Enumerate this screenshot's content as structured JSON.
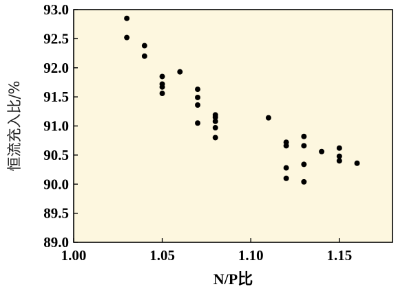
{
  "chart_data": {
    "type": "scatter",
    "title": "",
    "xlabel": "N/P比",
    "ylabel": "恒流充入比/%",
    "xlim": [
      1.0,
      1.18
    ],
    "ylim": [
      89.0,
      93.0
    ],
    "x_ticks": [
      "1.00",
      "1.05",
      "1.10",
      "1.15"
    ],
    "y_ticks": [
      "89.0",
      "89.5",
      "90.0",
      "90.5",
      "91.0",
      "91.5",
      "92.0",
      "92.5",
      "93.0"
    ],
    "grid": false,
    "legend": "none",
    "colors": {
      "plot_background": "#fdf7df",
      "point": "#000000",
      "axis": "#000000"
    },
    "series": [
      {
        "points": [
          {
            "x": 1.03,
            "y": 92.85
          },
          {
            "x": 1.03,
            "y": 92.52
          },
          {
            "x": 1.04,
            "y": 92.38
          },
          {
            "x": 1.04,
            "y": 92.2
          },
          {
            "x": 1.05,
            "y": 91.85
          },
          {
            "x": 1.05,
            "y": 91.72
          },
          {
            "x": 1.05,
            "y": 91.67
          },
          {
            "x": 1.05,
            "y": 91.56
          },
          {
            "x": 1.06,
            "y": 91.93
          },
          {
            "x": 1.07,
            "y": 91.63
          },
          {
            "x": 1.07,
            "y": 91.49
          },
          {
            "x": 1.07,
            "y": 91.36
          },
          {
            "x": 1.07,
            "y": 91.05
          },
          {
            "x": 1.08,
            "y": 91.19
          },
          {
            "x": 1.08,
            "y": 91.15
          },
          {
            "x": 1.08,
            "y": 91.08
          },
          {
            "x": 1.08,
            "y": 90.97
          },
          {
            "x": 1.08,
            "y": 90.8
          },
          {
            "x": 1.11,
            "y": 91.14
          },
          {
            "x": 1.12,
            "y": 90.72
          },
          {
            "x": 1.12,
            "y": 90.66
          },
          {
            "x": 1.12,
            "y": 90.28
          },
          {
            "x": 1.12,
            "y": 90.1
          },
          {
            "x": 1.13,
            "y": 90.82
          },
          {
            "x": 1.13,
            "y": 90.66
          },
          {
            "x": 1.13,
            "y": 90.34
          },
          {
            "x": 1.13,
            "y": 90.04
          },
          {
            "x": 1.14,
            "y": 90.56
          },
          {
            "x": 1.15,
            "y": 90.62
          },
          {
            "x": 1.15,
            "y": 90.48
          },
          {
            "x": 1.15,
            "y": 90.4
          },
          {
            "x": 1.16,
            "y": 90.36
          }
        ]
      }
    ]
  }
}
